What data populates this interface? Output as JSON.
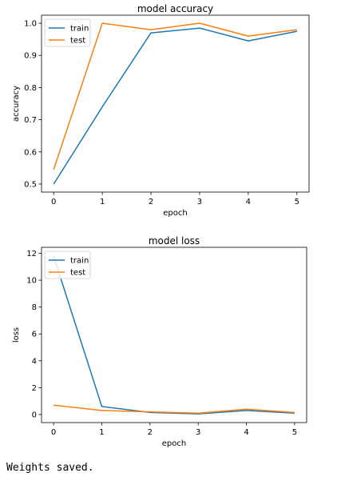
{
  "output_text": "Weights saved.",
  "chart_data": [
    {
      "type": "line",
      "title": "model accuracy",
      "xlabel": "epoch",
      "ylabel": "accuracy",
      "x": [
        0,
        1,
        2,
        3,
        4,
        5
      ],
      "xlim": [
        -0.25,
        5.25
      ],
      "ylim": [
        0.475,
        1.025
      ],
      "x_ticks": [
        0,
        1,
        2,
        3,
        4,
        5
      ],
      "y_ticks": [
        0.5,
        0.6,
        0.7,
        0.8,
        0.9,
        1.0
      ],
      "y_tick_labels": [
        "0.5",
        "0.6",
        "0.7",
        "0.8",
        "0.9",
        "1.0"
      ],
      "legend_position": "upper-left",
      "grid": false,
      "series": [
        {
          "name": "train",
          "color": "#1f77b4",
          "values": [
            0.5,
            0.74,
            0.97,
            0.985,
            0.945,
            0.975
          ]
        },
        {
          "name": "test",
          "color": "#ff7f0e",
          "values": [
            0.545,
            1.0,
            0.98,
            1.0,
            0.96,
            0.98
          ]
        }
      ]
    },
    {
      "type": "line",
      "title": "model loss",
      "xlabel": "epoch",
      "ylabel": "loss",
      "x": [
        0,
        1,
        2,
        3,
        4,
        5
      ],
      "xlim": [
        -0.25,
        5.25
      ],
      "ylim": [
        -0.6,
        12.45
      ],
      "x_ticks": [
        0,
        1,
        2,
        3,
        4,
        5
      ],
      "y_ticks": [
        0,
        2,
        4,
        6,
        8,
        10,
        12
      ],
      "y_tick_labels": [
        "0",
        "2",
        "4",
        "6",
        "8",
        "10",
        "12"
      ],
      "legend_position": "upper-left",
      "grid": false,
      "series": [
        {
          "name": "train",
          "color": "#1f77b4",
          "values": [
            11.8,
            0.6,
            0.15,
            0.05,
            0.3,
            0.1
          ]
        },
        {
          "name": "test",
          "color": "#ff7f0e",
          "values": [
            0.7,
            0.3,
            0.2,
            0.1,
            0.4,
            0.15
          ]
        }
      ]
    }
  ]
}
